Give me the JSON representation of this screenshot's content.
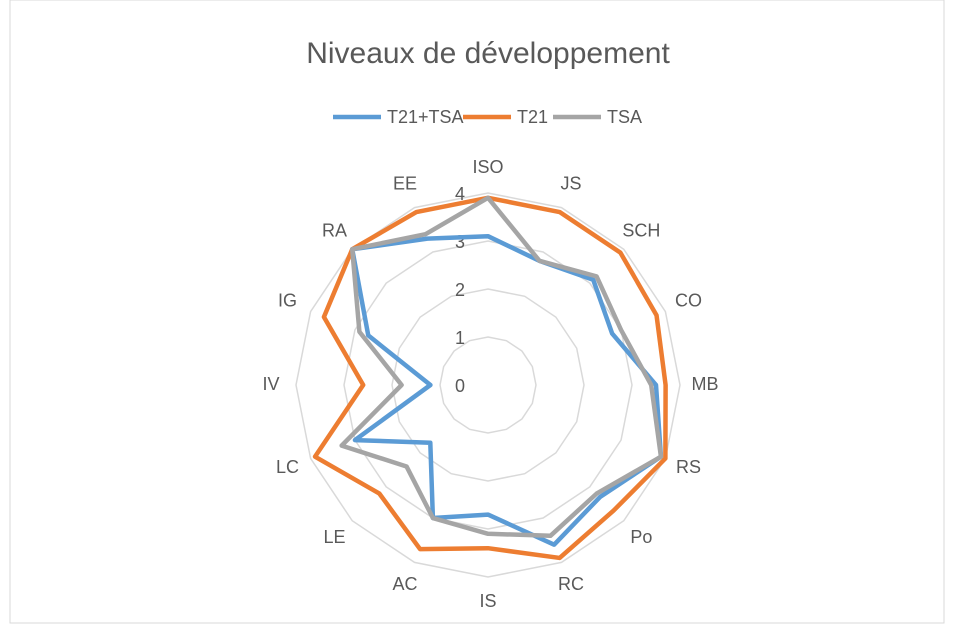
{
  "chart_data": {
    "type": "radar",
    "title": "Niveaux de développement",
    "categories": [
      "ISO",
      "JS",
      "SCH",
      "CO",
      "MB",
      "RS",
      "Po",
      "RC",
      "IS",
      "AC",
      "LE",
      "LC",
      "IV",
      "IG",
      "RA",
      "EE"
    ],
    "series": [
      {
        "name": "T21+TSA",
        "color": "#5b9bd5",
        "values": [
          3.1,
          2.8,
          3.1,
          2.8,
          3.5,
          3.9,
          3.3,
          3.6,
          2.7,
          3.0,
          1.7,
          3.0,
          1.2,
          2.7,
          4.0,
          3.3
        ]
      },
      {
        "name": "T21",
        "color": "#ed7d31",
        "values": [
          3.9,
          3.9,
          3.9,
          3.8,
          3.7,
          4.0,
          3.7,
          3.9,
          3.4,
          3.7,
          3.2,
          3.9,
          2.6,
          3.7,
          4.0,
          3.9
        ]
      },
      {
        "name": "TSA",
        "color": "#a5a5a5",
        "values": [
          3.9,
          2.8,
          3.2,
          3.0,
          3.4,
          3.9,
          3.2,
          3.4,
          3.1,
          3.0,
          2.4,
          3.3,
          1.8,
          2.9,
          4.0,
          3.4
        ]
      }
    ],
    "ylim": [
      0,
      4
    ],
    "yticks": [
      0,
      1,
      2,
      3,
      4
    ],
    "grid": true,
    "legend": "top"
  }
}
